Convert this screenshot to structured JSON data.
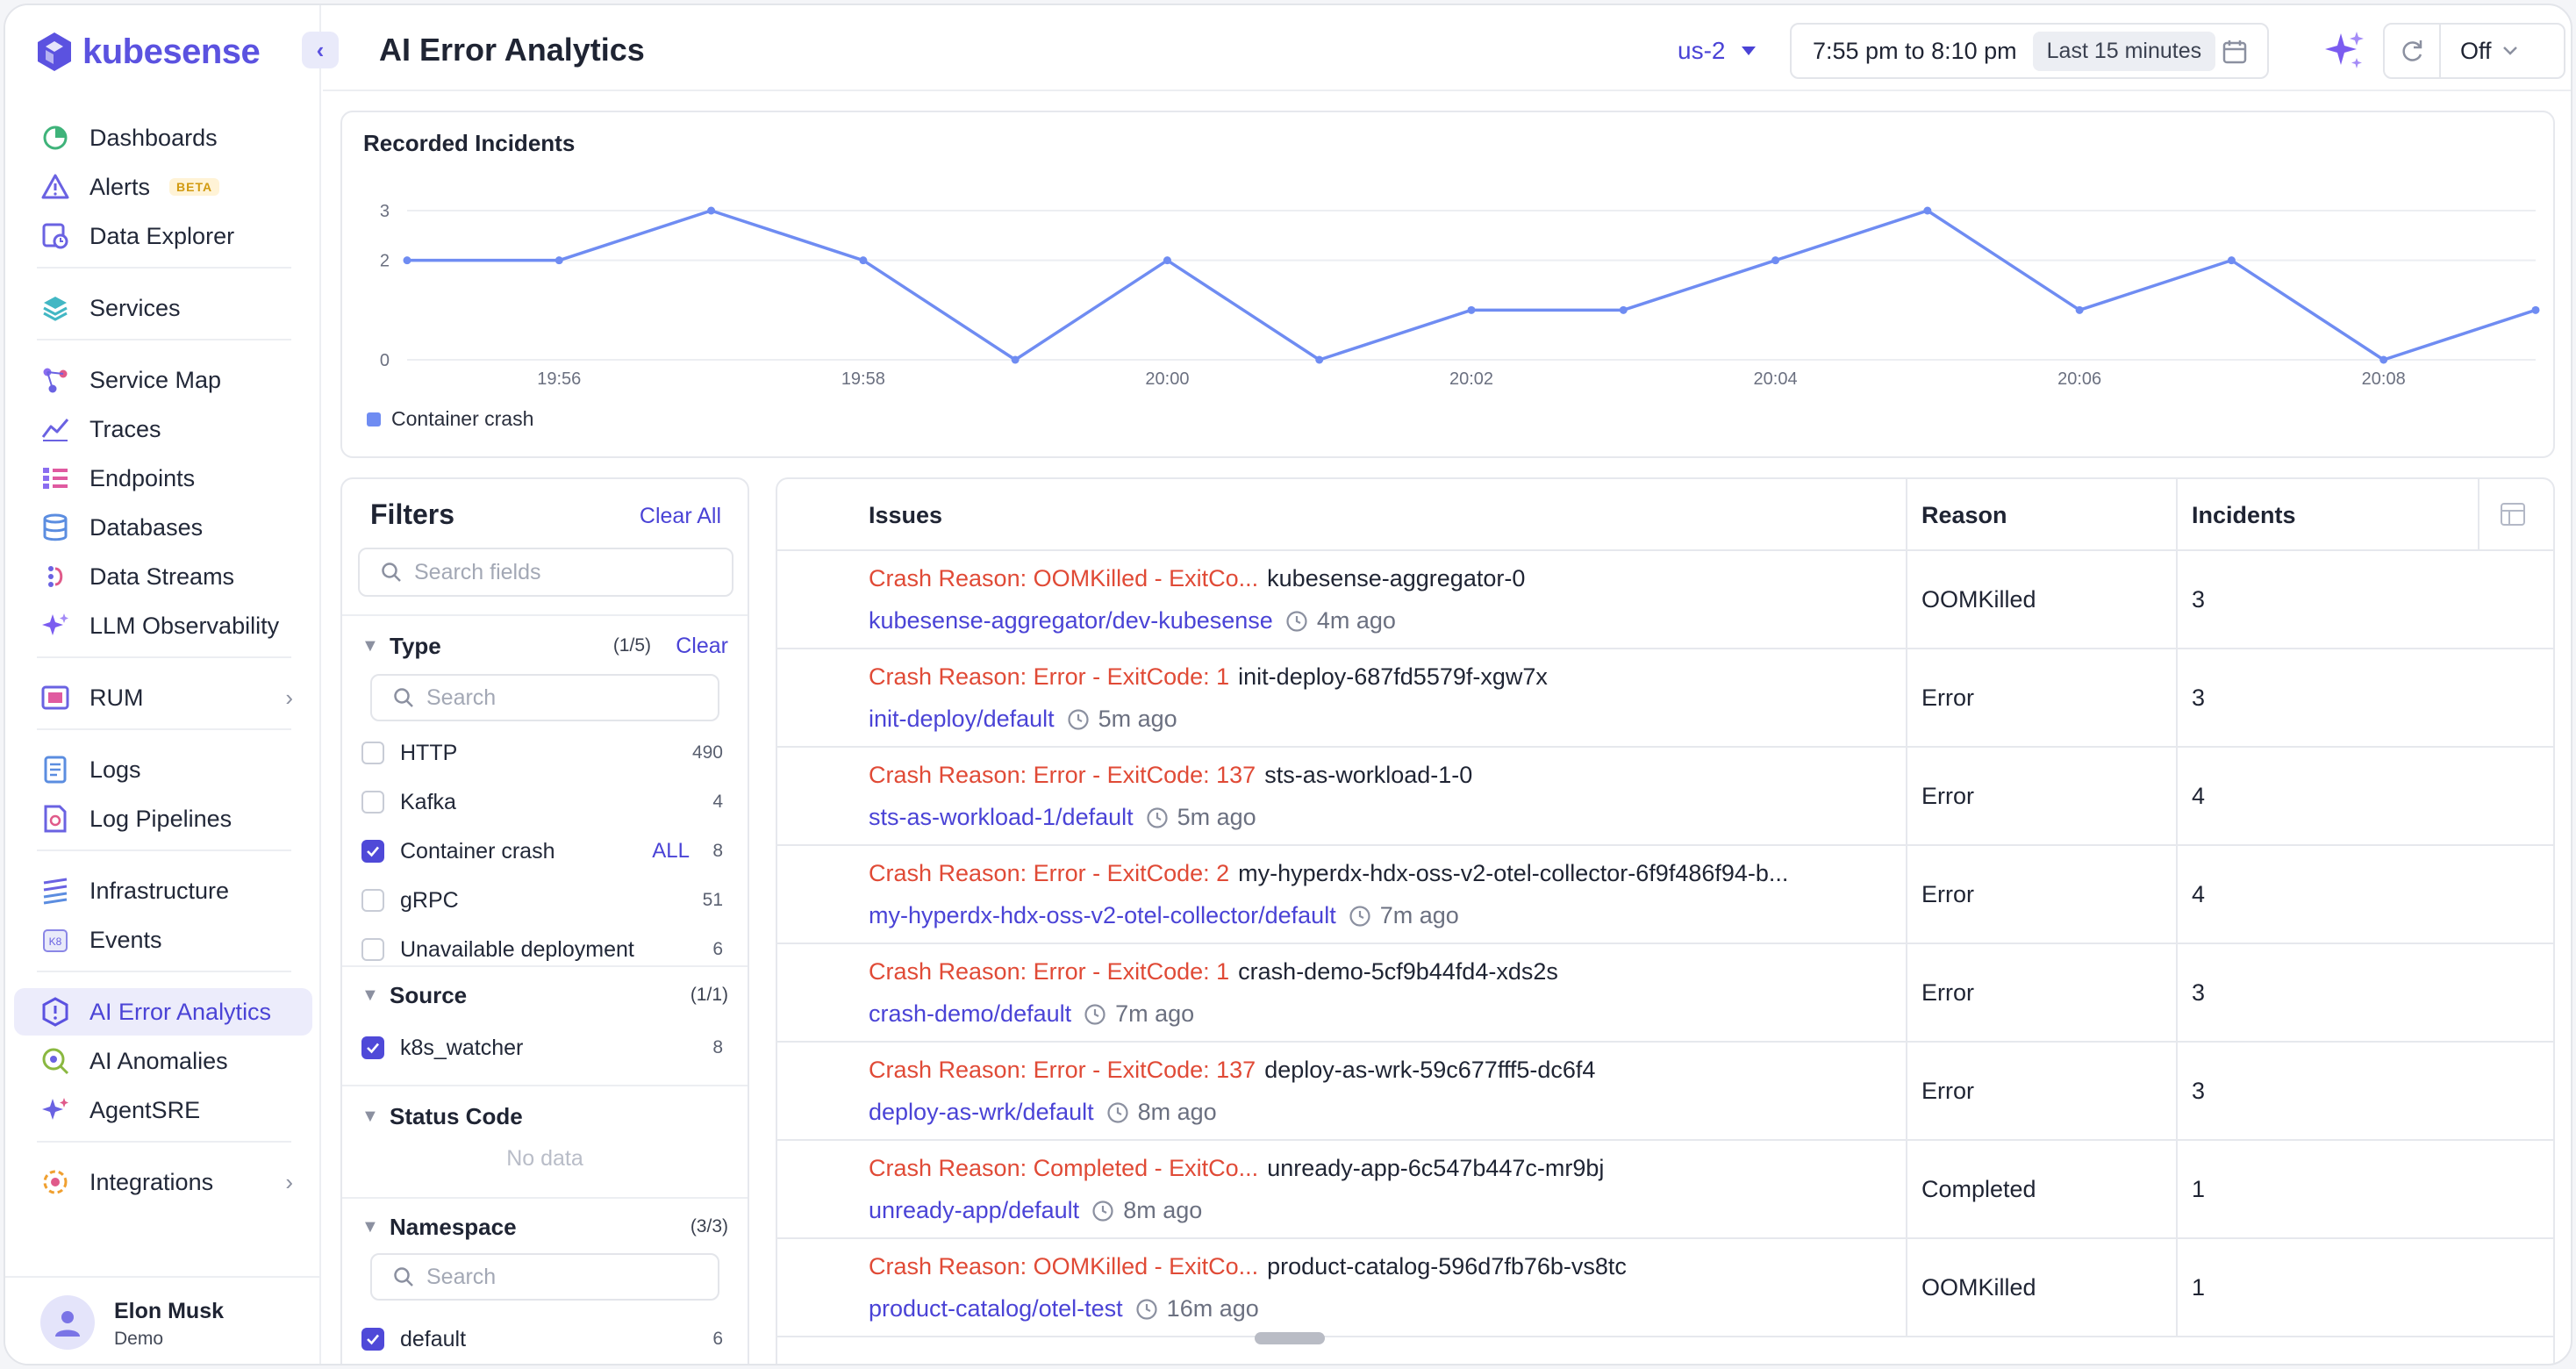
{
  "app": {
    "brand": "kubesense",
    "accent": "#5b52e0"
  },
  "sidebar": {
    "items": [
      {
        "label": "Dashboards",
        "icon": "dashboard-icon"
      },
      {
        "label": "Alerts",
        "icon": "alert-icon",
        "badge": "BETA"
      },
      {
        "label": "Data Explorer",
        "icon": "data-explorer-icon"
      },
      {
        "label": "Services",
        "icon": "services-icon"
      },
      {
        "label": "Service Map",
        "icon": "service-map-icon"
      },
      {
        "label": "Traces",
        "icon": "traces-icon"
      },
      {
        "label": "Endpoints",
        "icon": "endpoints-icon"
      },
      {
        "label": "Databases",
        "icon": "database-icon"
      },
      {
        "label": "Data Streams",
        "icon": "data-streams-icon"
      },
      {
        "label": "LLM Observability",
        "icon": "sparkle-icon"
      },
      {
        "label": "RUM",
        "icon": "rum-icon"
      },
      {
        "label": "Logs",
        "icon": "logs-icon"
      },
      {
        "label": "Log Pipelines",
        "icon": "log-pipelines-icon"
      },
      {
        "label": "Infrastructure",
        "icon": "infrastructure-icon"
      },
      {
        "label": "Events",
        "icon": "events-icon"
      },
      {
        "label": "AI Error Analytics",
        "icon": "ai-error-icon",
        "active": true
      },
      {
        "label": "AI Anomalies",
        "icon": "ai-anomalies-icon"
      },
      {
        "label": "AgentSRE",
        "icon": "agentsre-icon"
      },
      {
        "label": "Integrations",
        "icon": "integrations-icon"
      }
    ],
    "user": {
      "name": "Elon Musk",
      "role": "Demo"
    }
  },
  "header": {
    "title": "AI Error Analytics",
    "region": "us-2",
    "time_range": "7:55 pm to 8:10 pm",
    "time_preset": "Last 15 minutes",
    "refresh": "Off"
  },
  "chart": {
    "title": "Recorded Incidents",
    "legend": "Container crash",
    "color": "#6f8cf2"
  },
  "chart_data": {
    "type": "line",
    "title": "Recorded Incidents",
    "xlabel": "",
    "ylabel": "",
    "x_ticks": [
      "19:56",
      "19:58",
      "20:00",
      "20:02",
      "20:04",
      "20:06",
      "20:08"
    ],
    "y_ticks": [
      "0",
      "2",
      "3"
    ],
    "ylim": [
      0,
      3
    ],
    "grid": true,
    "legend_position": "bottom-left",
    "series": [
      {
        "name": "Container crash",
        "x": [
          "19:55",
          "19:56",
          "19:57",
          "19:58",
          "19:59",
          "20:00",
          "20:01",
          "20:02",
          "20:03",
          "20:04",
          "20:05",
          "20:06",
          "20:07",
          "20:08",
          "20:09"
        ],
        "values": [
          2,
          2,
          3,
          2,
          0,
          2,
          0,
          1,
          1,
          2,
          3,
          1,
          2,
          0,
          1
        ]
      }
    ]
  },
  "filters": {
    "title": "Filters",
    "clear_all": "Clear All",
    "search_placeholder": "Search fields",
    "type": {
      "label": "Type",
      "count": "(1/5)",
      "clear": "Clear",
      "search_placeholder": "Search",
      "options": [
        {
          "label": "HTTP",
          "count": "490",
          "checked": false
        },
        {
          "label": "Kafka",
          "count": "4",
          "checked": false
        },
        {
          "label": "Container crash",
          "count": "8",
          "checked": true,
          "all": "ALL"
        },
        {
          "label": "gRPC",
          "count": "51",
          "checked": false
        },
        {
          "label": "Unavailable deployment",
          "count": "6",
          "checked": false
        }
      ]
    },
    "source": {
      "label": "Source",
      "count": "(1/1)",
      "options": [
        {
          "label": "k8s_watcher",
          "count": "8",
          "checked": true
        }
      ]
    },
    "status_code": {
      "label": "Status Code",
      "empty": "No data"
    },
    "namespace": {
      "label": "Namespace",
      "count": "(3/3)",
      "search_placeholder": "Search",
      "options": [
        {
          "label": "default",
          "count": "6",
          "checked": true
        }
      ]
    }
  },
  "issues": {
    "columns": [
      "Issues",
      "Reason",
      "Incidents"
    ],
    "rows": [
      {
        "crash": "Crash Reason: OOMKilled - ExitCo...",
        "pod": "kubesense-aggregator-0",
        "namespace": "kubesense-aggregator/dev-kubesense",
        "ago": "4m ago",
        "reason": "OOMKilled",
        "incidents": "3"
      },
      {
        "crash": "Crash Reason: Error - ExitCode: 1",
        "pod": "init-deploy-687fd5579f-xgw7x",
        "namespace": "init-deploy/default",
        "ago": "5m ago",
        "reason": "Error",
        "incidents": "3"
      },
      {
        "crash": "Crash Reason: Error - ExitCode: 137",
        "pod": "sts-as-workload-1-0",
        "namespace": "sts-as-workload-1/default",
        "ago": "5m ago",
        "reason": "Error",
        "incidents": "4"
      },
      {
        "crash": "Crash Reason: Error - ExitCode: 2",
        "pod": "my-hyperdx-hdx-oss-v2-otel-collector-6f9f486f94-b...",
        "namespace": "my-hyperdx-hdx-oss-v2-otel-collector/default",
        "ago": "7m ago",
        "reason": "Error",
        "incidents": "4"
      },
      {
        "crash": "Crash Reason: Error - ExitCode: 1",
        "pod": "crash-demo-5cf9b44fd4-xds2s",
        "namespace": "crash-demo/default",
        "ago": "7m ago",
        "reason": "Error",
        "incidents": "3"
      },
      {
        "crash": "Crash Reason: Error - ExitCode: 137",
        "pod": "deploy-as-wrk-59c677fff5-dc6f4",
        "namespace": "deploy-as-wrk/default",
        "ago": "8m ago",
        "reason": "Error",
        "incidents": "3"
      },
      {
        "crash": "Crash Reason: Completed - ExitCo...",
        "pod": "unready-app-6c547b447c-mr9bj",
        "namespace": "unready-app/default",
        "ago": "8m ago",
        "reason": "Completed",
        "incidents": "1"
      },
      {
        "crash": "Crash Reason: OOMKilled - ExitCo...",
        "pod": "product-catalog-596d7fb76b-vs8tc",
        "namespace": "product-catalog/otel-test",
        "ago": "16m ago",
        "reason": "OOMKilled",
        "incidents": "1"
      }
    ]
  }
}
